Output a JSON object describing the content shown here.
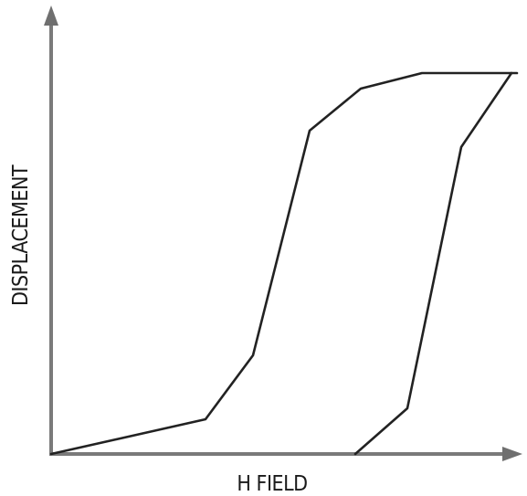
{
  "figure": {
    "x_axis_label": "H FIELD",
    "y_axis_label": "DISPLACEMENT"
  }
}
